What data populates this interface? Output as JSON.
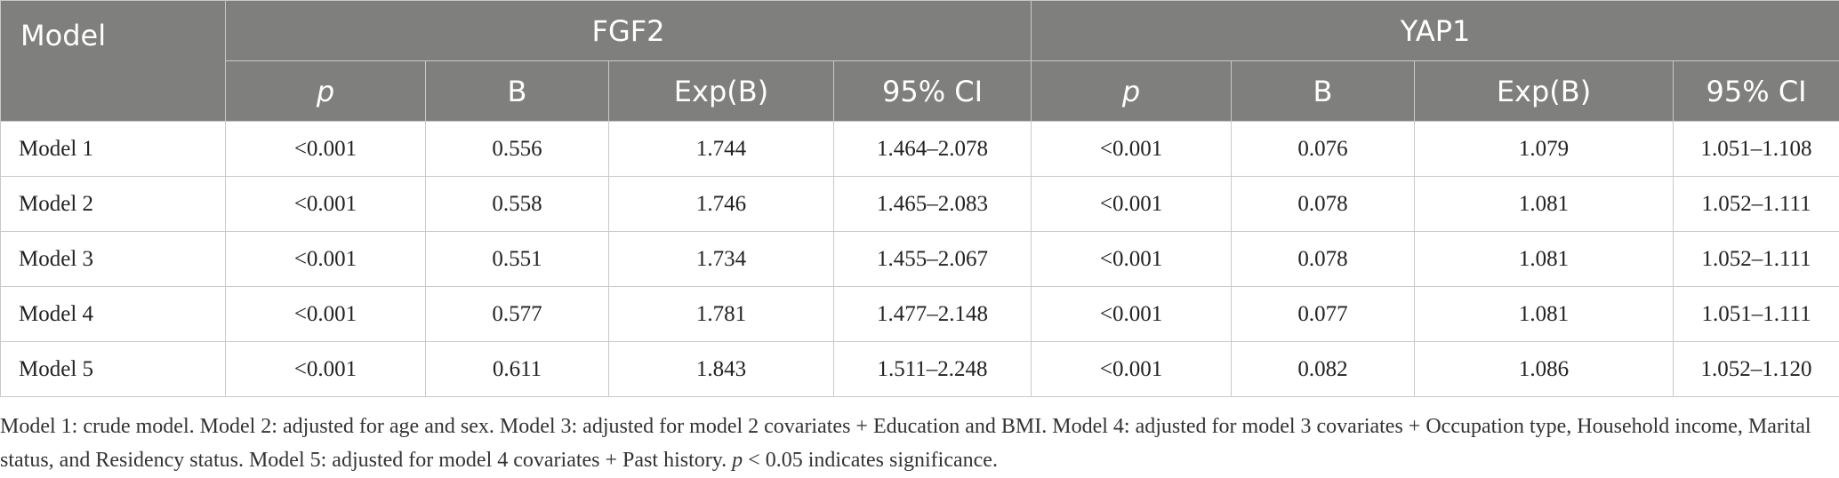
{
  "table": {
    "model_header": "Model",
    "groups": [
      "FGF2",
      "YAP1"
    ],
    "sub_headers": [
      "p",
      "B",
      "Exp(B)",
      "95% CI",
      "p",
      "B",
      "Exp(B)",
      "95% CI"
    ],
    "rows": [
      {
        "model": "Model 1",
        "cells": [
          "<0.001",
          "0.556",
          "1.744",
          "1.464–2.078",
          "<0.001",
          "0.076",
          "1.079",
          "1.051–1.108"
        ]
      },
      {
        "model": "Model 2",
        "cells": [
          "<0.001",
          "0.558",
          "1.746",
          "1.465–2.083",
          "<0.001",
          "0.078",
          "1.081",
          "1.052–1.111"
        ]
      },
      {
        "model": "Model 3",
        "cells": [
          "<0.001",
          "0.551",
          "1.734",
          "1.455–2.067",
          "<0.001",
          "0.078",
          "1.081",
          "1.052–1.111"
        ]
      },
      {
        "model": "Model 4",
        "cells": [
          "<0.001",
          "0.577",
          "1.781",
          "1.477–2.148",
          "<0.001",
          "0.077",
          "1.081",
          "1.051–1.111"
        ]
      },
      {
        "model": "Model 5",
        "cells": [
          "<0.001",
          "0.611",
          "1.843",
          "1.511–2.248",
          "<0.001",
          "0.082",
          "1.086",
          "1.052–1.120"
        ]
      }
    ]
  },
  "footnote": {
    "text_a": "Model 1: crude model. Model 2: adjusted for age and sex. Model 3: adjusted for model 2 covariates + Education and BMI. Model 4: adjusted for model 3 covariates + Occupation type, Household income, Marital status, and Residency status. Model 5: adjusted for model 4 covariates + Past history. ",
    "p_symbol": "p",
    "text_b": " < 0.05 indicates significance."
  }
}
